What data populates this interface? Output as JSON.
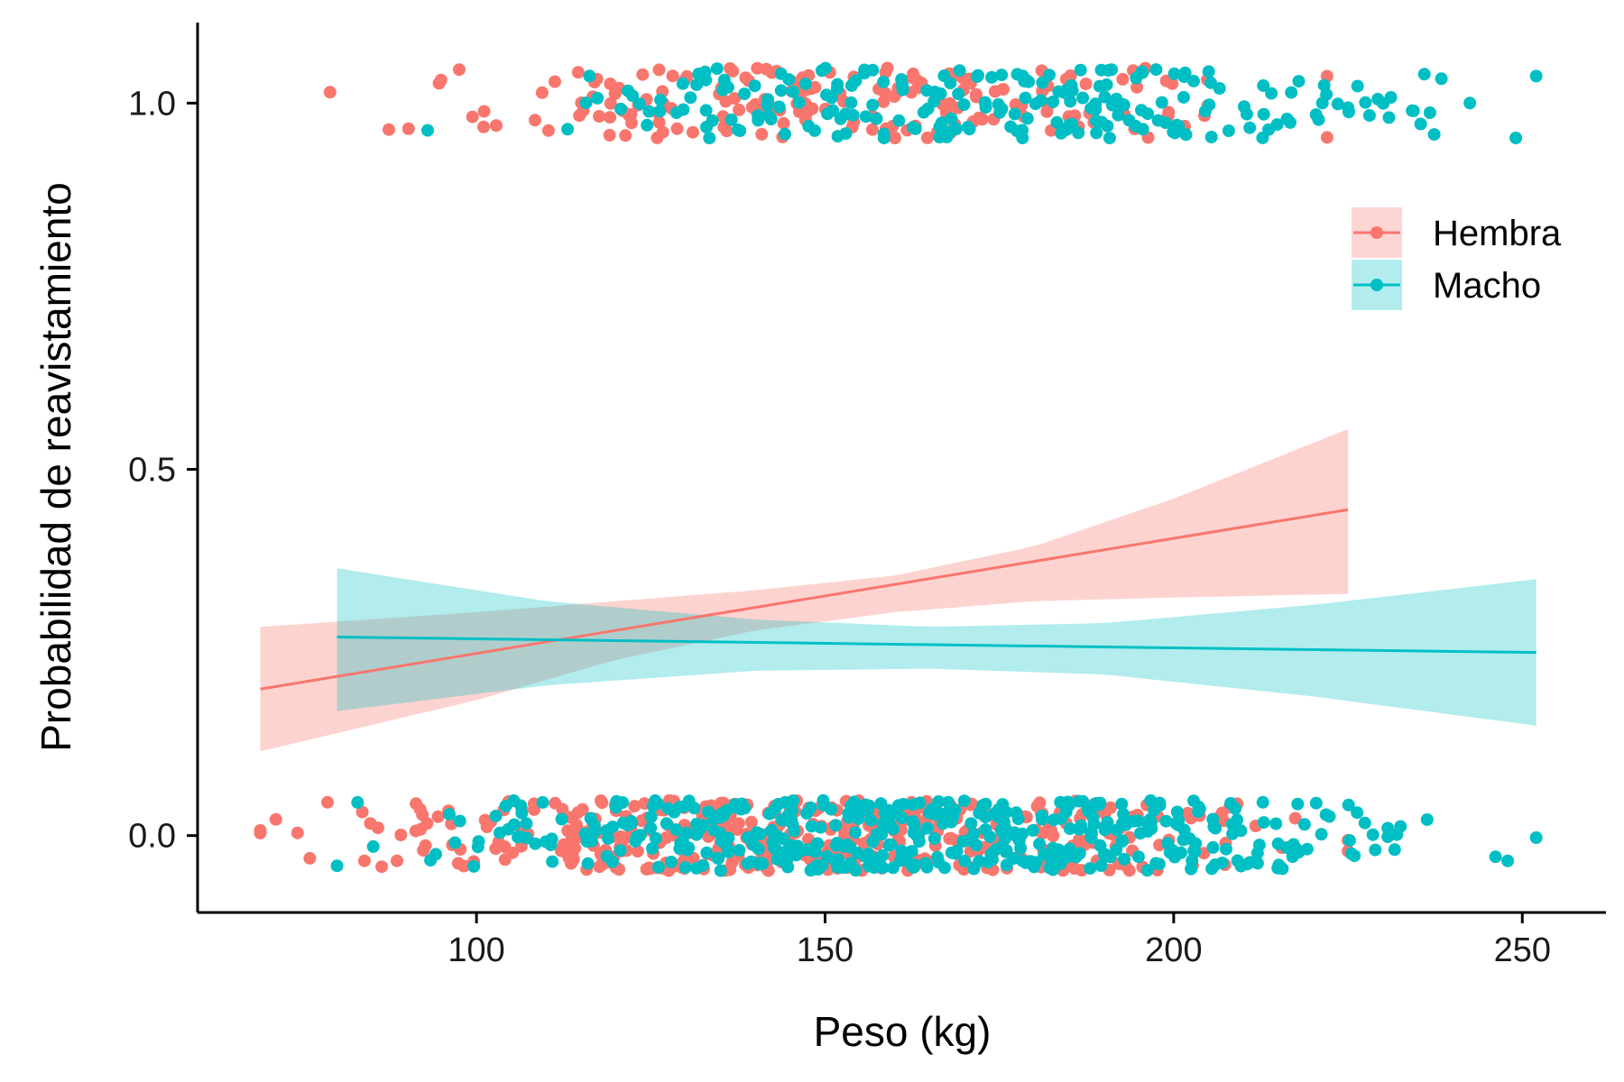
{
  "chart_data": {
    "type": "scatter",
    "xlabel": "Peso (kg)",
    "ylabel": "Probabilidad de reavistamiento",
    "xlim": [
      60,
      262
    ],
    "ylim": [
      -0.105,
      1.11
    ],
    "x_ticks": [
      "100",
      "150",
      "200",
      "250"
    ],
    "x_tick_values": [
      100,
      150,
      200,
      250
    ],
    "y_ticks": [
      "0.0",
      "0.5",
      "1.0"
    ],
    "y_tick_values": [
      0,
      0.5,
      1
    ],
    "grid": false,
    "legend_position": "right",
    "series": [
      {
        "name": "Hembra",
        "color": "#F8766D",
        "x_range": [
          69,
          225
        ],
        "fit_line": {
          "x": [
            69,
            225
          ],
          "y": [
            0.2,
            0.445
          ]
        },
        "ci_band": {
          "x": [
            69,
            100,
            120,
            140,
            160,
            180,
            200,
            225
          ],
          "lower": [
            0.115,
            0.185,
            0.24,
            0.28,
            0.305,
            0.32,
            0.325,
            0.33
          ],
          "upper": [
            0.285,
            0.305,
            0.32,
            0.335,
            0.355,
            0.395,
            0.46,
            0.555
          ]
        },
        "points": {
          "y1_count": 190,
          "y1_range": [
            79,
            222
          ],
          "y0_count": 420,
          "y0_range": [
            69,
            225
          ]
        }
      },
      {
        "name": "Macho",
        "color": "#00BFC4",
        "x_range": [
          80,
          252
        ],
        "fit_line": {
          "x": [
            80,
            252
          ],
          "y": [
            0.271,
            0.25
          ]
        },
        "ci_band": {
          "x": [
            80,
            110,
            140,
            165,
            190,
            220,
            252
          ],
          "lower": [
            0.17,
            0.205,
            0.225,
            0.228,
            0.22,
            0.19,
            0.15
          ],
          "upper": [
            0.365,
            0.32,
            0.295,
            0.285,
            0.29,
            0.315,
            0.35
          ]
        },
        "points": {
          "y1_count": 230,
          "y1_range": [
            93,
            252
          ],
          "y0_count": 480,
          "y0_range": [
            80,
            252
          ]
        }
      }
    ]
  }
}
